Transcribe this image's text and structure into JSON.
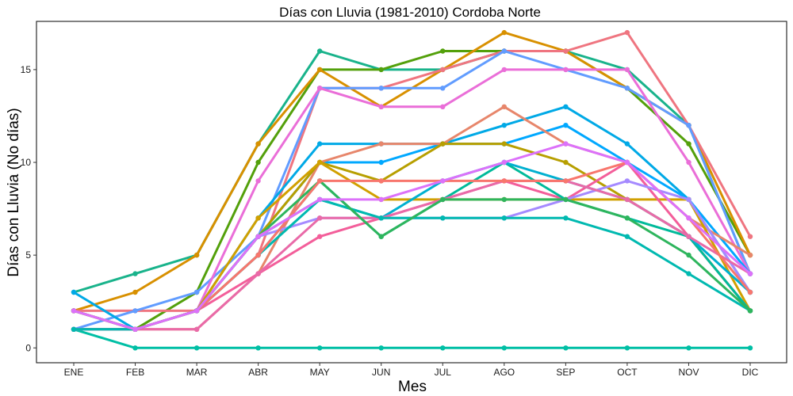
{
  "chart_data": {
    "type": "line",
    "title": "Días con Lluvia (1981-2010)  Cordoba Norte",
    "xlabel": "Mes",
    "ylabel": "Días con Lluvia (No días)",
    "categories": [
      "ENE",
      "FEB",
      "MAR",
      "ABR",
      "MAY",
      "JUN",
      "JUL",
      "AGO",
      "SEP",
      "OCT",
      "NOV",
      "DIC"
    ],
    "ylim": [
      -0.8,
      17.6
    ],
    "yticks": [
      0,
      5,
      10,
      15
    ],
    "grid": false,
    "legend": "none",
    "series": [
      {
        "color": "#00BFA5",
        "values": [
          1,
          0,
          0,
          0,
          0,
          0,
          0,
          0,
          0,
          0,
          0,
          0
        ]
      },
      {
        "color": "#19B38B",
        "values": [
          3,
          4,
          5,
          11,
          16,
          15,
          15,
          16,
          16,
          15,
          12,
          4
        ]
      },
      {
        "color": "#53A00B",
        "values": [
          2,
          1,
          3,
          10,
          15,
          15,
          16,
          16,
          16,
          14,
          11,
          5
        ]
      },
      {
        "color": "#D89000",
        "values": [
          2,
          3,
          5,
          11,
          15,
          13,
          15,
          17,
          16,
          14,
          12,
          5
        ]
      },
      {
        "color": "#EF7580",
        "values": [
          2,
          2,
          2,
          5,
          14,
          14,
          15,
          16,
          16,
          17,
          12,
          6
        ]
      },
      {
        "color": "#619CFF",
        "values": [
          1,
          2,
          3,
          6,
          14,
          14,
          14,
          16,
          15,
          14,
          12,
          4
        ]
      },
      {
        "color": "#EA6ED8",
        "values": [
          2,
          1,
          2,
          9,
          14,
          13,
          13,
          15,
          15,
          15,
          10,
          4
        ]
      },
      {
        "color": "#00A9E6",
        "values": [
          3,
          1,
          2,
          7,
          11,
          11,
          11,
          12,
          13,
          11,
          8,
          3
        ]
      },
      {
        "color": "#00A8FF",
        "values": [
          1,
          1,
          2,
          6,
          10,
          10,
          11,
          11,
          12,
          10,
          8,
          4
        ]
      },
      {
        "color": "#E7866B",
        "values": [
          2,
          1,
          1,
          4,
          10,
          11,
          11,
          13,
          11,
          10,
          7,
          5
        ]
      },
      {
        "color": "#B79F00",
        "values": [
          2,
          1,
          2,
          6,
          10,
          9,
          11,
          11,
          10,
          8,
          6,
          2
        ]
      },
      {
        "color": "#D1A000",
        "values": [
          2,
          1,
          2,
          7,
          10,
          8,
          8,
          8,
          8,
          8,
          8,
          2
        ]
      },
      {
        "color": "#F35E9A",
        "values": [
          1,
          1,
          2,
          4,
          6,
          7,
          8,
          9,
          8,
          10,
          6,
          2
        ]
      },
      {
        "color": "#00BA9A",
        "values": [
          1,
          1,
          2,
          5,
          9,
          6,
          8,
          10,
          8,
          7,
          6,
          2
        ]
      },
      {
        "color": "#00B0D0",
        "values": [
          2,
          1,
          2,
          6,
          8,
          7,
          9,
          10,
          9,
          8,
          6,
          3
        ]
      },
      {
        "color": "#A58AFF",
        "values": [
          2,
          1,
          2,
          6,
          7,
          7,
          7,
          7,
          8,
          9,
          8,
          3
        ]
      },
      {
        "color": "#E96AA8",
        "values": [
          1,
          1,
          1,
          4,
          7,
          7,
          8,
          9,
          9,
          8,
          6,
          4
        ]
      },
      {
        "color": "#00B9B0",
        "values": [
          1,
          1,
          2,
          5,
          8,
          7,
          7,
          7,
          7,
          6,
          4,
          2
        ]
      },
      {
        "color": "#2EB55D",
        "values": [
          2,
          1,
          2,
          6,
          9,
          6,
          8,
          8,
          8,
          7,
          5,
          2
        ]
      },
      {
        "color": "#F8766D",
        "values": [
          2,
          1,
          2,
          5,
          9,
          9,
          9,
          9,
          9,
          10,
          7,
          3
        ]
      },
      {
        "color": "#DC71FA",
        "values": [
          2,
          1,
          2,
          6,
          8,
          8,
          9,
          10,
          11,
          10,
          7,
          4
        ]
      }
    ]
  }
}
